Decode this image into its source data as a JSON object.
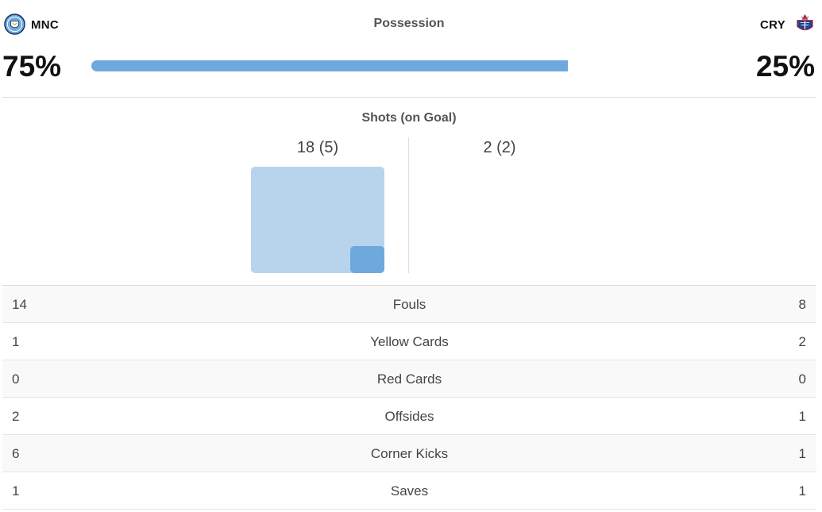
{
  "home": {
    "abbr": "MNC",
    "possession": "75%",
    "possession_value": 75,
    "shots_label": "18 (5)",
    "shots": 18,
    "shots_on_goal": 5,
    "logo_icon": "manchester-city-crest-icon",
    "color": "#6fa8dc"
  },
  "away": {
    "abbr": "CRY",
    "possession": "25%",
    "possession_value": 25,
    "shots_label": "2 (2)",
    "shots": 2,
    "shots_on_goal": 2,
    "logo_icon": "crystal-palace-crest-icon"
  },
  "possession_title": "Possession",
  "shots_title": "Shots (on Goal)",
  "colors": {
    "bar": "#6fa8dc",
    "shots_total": "#b7d4ec",
    "shots_on_goal": "#6fa8dc"
  },
  "stats": [
    {
      "label": "Fouls",
      "home": "14",
      "away": "8"
    },
    {
      "label": "Yellow Cards",
      "home": "1",
      "away": "2"
    },
    {
      "label": "Red Cards",
      "home": "0",
      "away": "0"
    },
    {
      "label": "Offsides",
      "home": "2",
      "away": "1"
    },
    {
      "label": "Corner Kicks",
      "home": "6",
      "away": "1"
    },
    {
      "label": "Saves",
      "home": "1",
      "away": "1"
    }
  ]
}
